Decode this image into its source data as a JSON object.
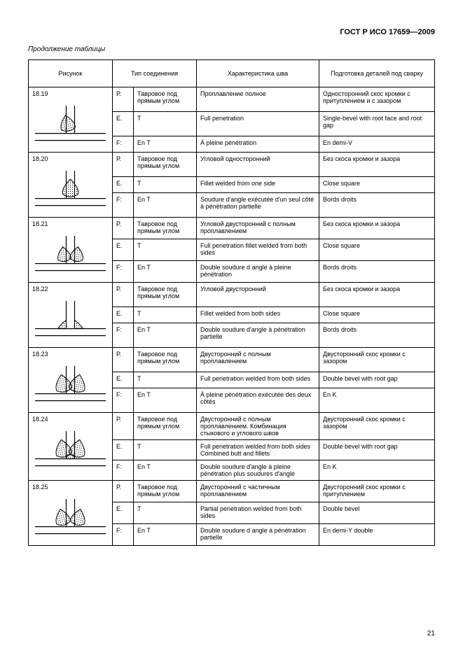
{
  "doc_id": "ГОСТ Р ИСО 17659—2009",
  "continuation": "Продолжение таблицы",
  "page_number": "21",
  "headers": {
    "fig": "Рисунок",
    "joint_type": "Тип соединения",
    "seam": "Характеристика шва",
    "prep": "Подготовка деталей под сварку"
  },
  "langs": {
    "ru": "Р.",
    "en": "E.",
    "fr": "F:"
  },
  "joint_terms": {
    "ru": "Тавровое под прямым углом",
    "en": "T",
    "fr": "En T"
  },
  "rows": [
    {
      "num": "18.19",
      "seam_ru": "Проплавление полное",
      "seam_en": "Full penetration",
      "seam_fr": "À pleine pénétration",
      "prep_ru": "Односторонний скос кромки с притуплением и с зазором",
      "prep_en": "Single-bevel with root face and root gap",
      "prep_fr": "En demi-V"
    },
    {
      "num": "18.20",
      "seam_ru": "Угловой односторонний",
      "seam_en": "Fillet welded from one side",
      "seam_fr": "Soudure d'angle exécutée d'un seul côté à pénétration partielle",
      "prep_ru": "Без скоса кромки и зазора",
      "prep_en": "Close square",
      "prep_fr": "Bords droits"
    },
    {
      "num": "18.21",
      "seam_ru": "Угловой двусторонний с полным проплавлением",
      "seam_en": "Full penetration fillet welded from both sides",
      "seam_fr": "Double soudure d angle à pleine pénétration",
      "prep_ru": "Без скоса кромки и зазора",
      "prep_en": "Close square",
      "prep_fr": "Bords droits"
    },
    {
      "num": "18.22",
      "seam_ru": "Угловой двусторонний",
      "seam_en": "Fillet welded from both sides",
      "seam_fr": "Double soudure d'angle à pénétration partielle",
      "prep_ru": "Без скоса кромки и зазора",
      "prep_en": "Close square",
      "prep_fr": "Bords droits"
    },
    {
      "num": "18.23",
      "seam_ru": "Двусторонний с полным проплавлением",
      "seam_en": "Full penetration welded from both sides",
      "seam_fr": "À pleine pénétration exécutée des deux côtés",
      "prep_ru": "Двусторонний скос кромки с зазором",
      "prep_en": "Double bevel with root gap",
      "prep_fr": "En K"
    },
    {
      "num": "18.24",
      "seam_ru": "Двусторонний с полным проплавлением. Комбинация стыкового и углового швов",
      "seam_en": "Full penetration welded from both sides Combined butt and fillets",
      "seam_fr": "Double soudure d'angle à pleine pénétration plus soudures d'angle",
      "prep_ru": "Двусторонний скос кромки с зазором",
      "prep_en": "Double bevel with root gap",
      "prep_fr": "En K"
    },
    {
      "num": "18.25",
      "seam_ru": "Двусторонний с частичным проплавлением",
      "seam_en": "Partial penetration welded from both sides",
      "seam_fr": "Double soudure d angle à pénétration partielle",
      "prep_ru": "Двусторонний скос кромки с притуплением",
      "prep_en": "Double bevel",
      "prep_fr": "En demi-Y double"
    }
  ]
}
